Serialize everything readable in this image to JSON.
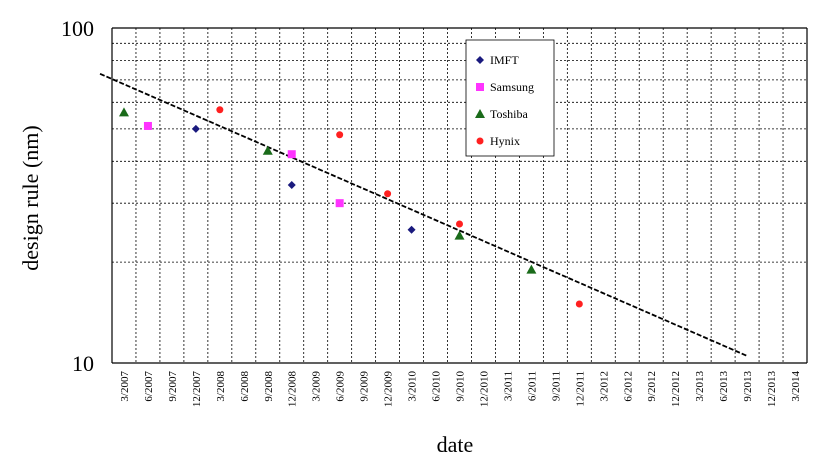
{
  "chart_data": {
    "type": "scatter",
    "title": "",
    "xlabel": "date",
    "ylabel": "design rule (nm)",
    "y_scale": "log",
    "ylim": [
      10,
      100
    ],
    "y_tick_labels": [
      "10",
      "100"
    ],
    "x_tick_labels": [
      "3/2007",
      "6/2007",
      "9/2007",
      "12/2007",
      "3/2008",
      "6/2008",
      "9/2008",
      "12/2008",
      "3/2009",
      "6/2009",
      "9/2009",
      "12/2009",
      "3/2010",
      "6/2010",
      "9/2010",
      "12/2010",
      "3/2011",
      "6/2011",
      "9/2011",
      "12/2011",
      "3/2012",
      "6/2012",
      "9/2012",
      "12/2012",
      "3/2013",
      "6/2013",
      "9/2013",
      "12/2013",
      "3/2014"
    ],
    "grid": true,
    "legend_position": "top-center",
    "series": [
      {
        "name": "IMFT",
        "marker": "diamond",
        "color": "#1a1a7e",
        "points": [
          {
            "x": "12/2007",
            "y": 50
          },
          {
            "x": "12/2008",
            "y": 34
          },
          {
            "x": "3/2010",
            "y": 25
          }
        ]
      },
      {
        "name": "Samsung",
        "marker": "square",
        "color": "#ff33ff",
        "points": [
          {
            "x": "6/2007",
            "y": 51
          },
          {
            "x": "12/2008",
            "y": 42
          },
          {
            "x": "6/2009",
            "y": 30
          }
        ]
      },
      {
        "name": "Toshiba",
        "marker": "triangle",
        "color": "#1a6b1a",
        "points": [
          {
            "x": "3/2007",
            "y": 56
          },
          {
            "x": "9/2008",
            "y": 43
          },
          {
            "x": "9/2010",
            "y": 24
          },
          {
            "x": "6/2011",
            "y": 19
          }
        ]
      },
      {
        "name": "Hynix",
        "marker": "circle",
        "color": "#ff2020",
        "points": [
          {
            "x": "3/2008",
            "y": 57
          },
          {
            "x": "6/2009",
            "y": 48
          },
          {
            "x": "12/2009",
            "y": 32
          },
          {
            "x": "9/2010",
            "y": 26
          },
          {
            "x": "12/2011",
            "y": 15
          }
        ]
      }
    ],
    "trendline": {
      "style": "dashed",
      "color": "#000000",
      "points": [
        {
          "x": "12/2006",
          "y": 73
        },
        {
          "x": "9/2013",
          "y": 10.5
        }
      ]
    }
  }
}
